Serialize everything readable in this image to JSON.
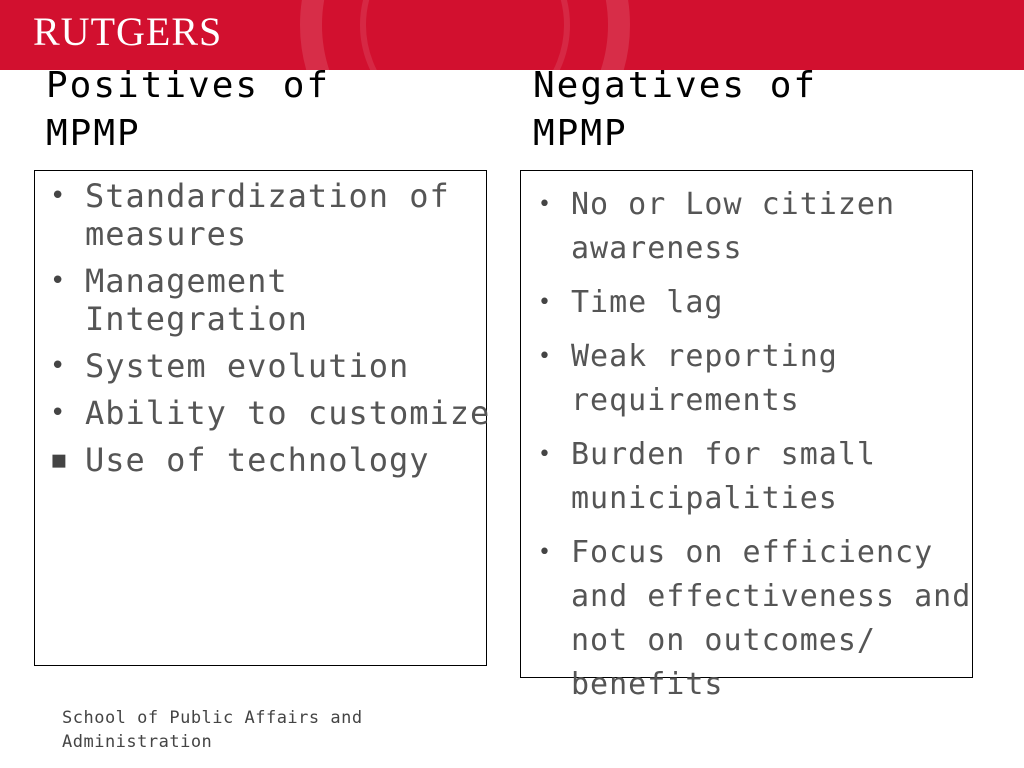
{
  "banner": {
    "logo_text": "RUTGERS",
    "color": "#d2102f"
  },
  "positives": {
    "title": "Positives of\nMPMP",
    "items": [
      {
        "bullet": "•",
        "text": "Standardization of measures"
      },
      {
        "bullet": "•",
        "text": "Management Integration"
      },
      {
        "bullet": "•",
        "text": "System evolution"
      },
      {
        "bullet": "•",
        "text": "Ability to customize"
      },
      {
        "bullet": "▪",
        "text": "Use of technology"
      }
    ]
  },
  "negatives": {
    "title": "Negatives of\nMPMP",
    "items": [
      {
        "bullet": "•",
        "text": "No or Low citizen awareness"
      },
      {
        "bullet": "•",
        "text": "Time lag"
      },
      {
        "bullet": "•",
        "text": "Weak reporting requirements"
      },
      {
        "bullet": "•",
        "text": "Burden for small municipalities"
      },
      {
        "bullet": "•",
        "text": "Focus on efficiency and effectiveness and not on outcomes/ benefits"
      }
    ]
  },
  "footer": {
    "text": "School of Public Affairs and Administration"
  }
}
